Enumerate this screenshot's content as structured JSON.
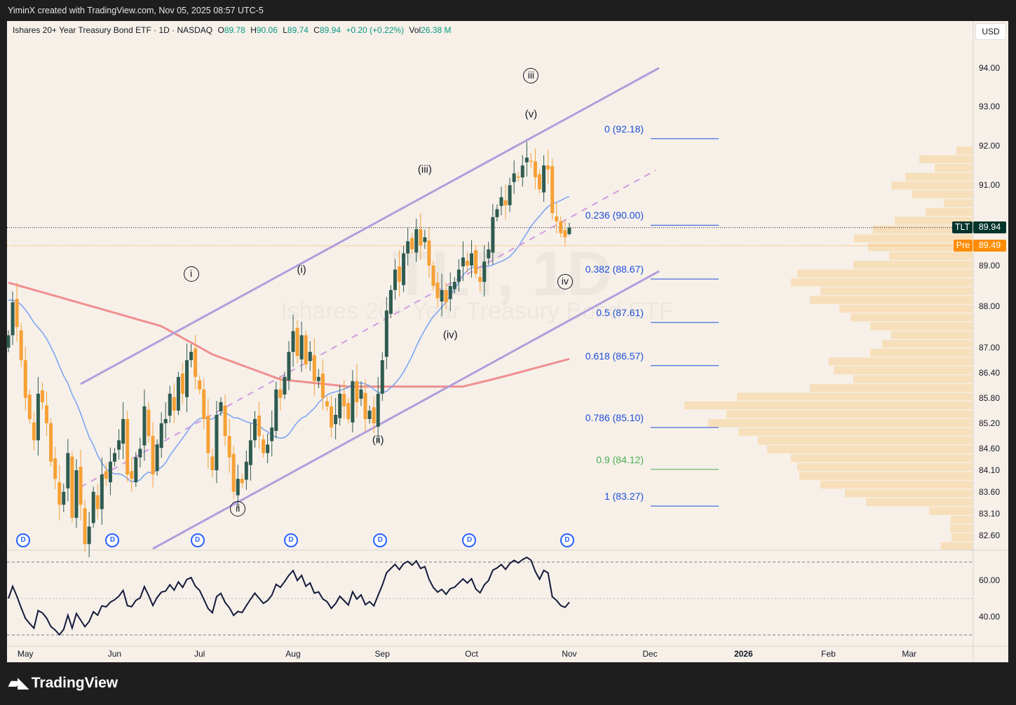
{
  "credit": "YiminX created with TradingView.com, Nov 05, 2025 08:57 UTC-5",
  "legend": {
    "title": "Ishares 20+ Year Treasury Bond ETF · 1D · NASDAQ",
    "o_label": "O",
    "o": "89.78",
    "h_label": "H",
    "h": "90.06",
    "l_label": "L",
    "l": "89.74",
    "c_label": "C",
    "c": "89.94",
    "change": "+0.20 (+0.22%)",
    "vol_label": "Vol",
    "vol": "26.38 M"
  },
  "currency": "USD",
  "watermark": {
    "symbol": "TLT, 1D",
    "name": "Ishares 20+ Year Treasury Bond ETF"
  },
  "price_tags": {
    "last": {
      "label": "TLT",
      "value": "89.94",
      "price": 89.94,
      "color": "#00332a"
    },
    "pre": {
      "label": "Pre",
      "value": "89.49",
      "price": 89.49,
      "color": "#ff8c00"
    }
  },
  "colors": {
    "up": "#2f5b50",
    "down": "#f7a035",
    "ma_fast": "#7ea6f2",
    "ma_slow": "#f08f8f",
    "channel": "#b39ddb",
    "fib": "#1d4ed8",
    "fib_green": "#4caf50",
    "profile": "#f7dfbb"
  },
  "price_axis": [
    "94.00",
    "93.00",
    "92.00",
    "91.00",
    "89.00",
    "88.00",
    "87.00",
    "86.40",
    "85.80",
    "85.20",
    "84.60",
    "84.10",
    "83.60",
    "83.10",
    "82.60"
  ],
  "rsi_axis": [
    "60.00",
    "40.00"
  ],
  "time_axis": [
    {
      "label": "May",
      "bar": 3
    },
    {
      "label": "Jun",
      "bar": 24
    },
    {
      "label": "Jul",
      "bar": 44
    },
    {
      "label": "Aug",
      "bar": 66
    },
    {
      "label": "Sep",
      "bar": 87
    },
    {
      "label": "Oct",
      "bar": 108
    },
    {
      "label": "Nov",
      "bar": 131
    },
    {
      "label": "Dec",
      "bar": 150
    },
    {
      "label": "2026",
      "bar": 172,
      "bold": true
    },
    {
      "label": "Feb",
      "bar": 192
    },
    {
      "label": "Mar",
      "bar": 211
    }
  ],
  "fib_levels": [
    {
      "label": "0 (92.18)",
      "price": 92.18
    },
    {
      "label": "0.236 (90.00)",
      "price": 90.0
    },
    {
      "label": "0.382 (88.67)",
      "price": 88.67
    },
    {
      "label": "0.5 (87.61)",
      "price": 87.61
    },
    {
      "label": "0.618 (86.57)",
      "price": 86.57
    },
    {
      "label": "0.786 (85.10)",
      "price": 85.1
    },
    {
      "label": "0.9 (84.12)",
      "price": 84.12,
      "green": true
    },
    {
      "label": "1 (83.27)",
      "price": 83.27
    }
  ],
  "waves": [
    {
      "label": "i",
      "circled": true,
      "bar": 43,
      "price": 88.8
    },
    {
      "label": "ii",
      "circled": true,
      "bar": 54,
      "price": 83.2
    },
    {
      "label": "iii",
      "circled": true,
      "bar": 123,
      "price": 93.8
    },
    {
      "label": "iv",
      "circled": true,
      "bar": 131,
      "price": 88.6
    },
    {
      "label": "(i)",
      "bar": 69,
      "price": 88.9
    },
    {
      "label": "(ii)",
      "bar": 87,
      "price": 84.8
    },
    {
      "label": "(iii)",
      "bar": 98,
      "price": 91.4
    },
    {
      "label": "(iv)",
      "bar": 104,
      "price": 87.3
    },
    {
      "label": "(v)",
      "bar": 123,
      "price": 92.8
    }
  ],
  "dividend_label": "D",
  "dividend_bars": [
    3,
    24,
    44,
    66,
    87,
    108,
    131
  ],
  "chart_data": {
    "type": "candlestick",
    "title": "Ishares 20+ Year Treasury Bond ETF · 1D · NASDAQ",
    "y_scale": "log",
    "ylim": [
      82.3,
      94.6
    ],
    "close": [
      87.3,
      88.1,
      87.5,
      86.7,
      85.8,
      85.3,
      84.8,
      85.9,
      85.7,
      85.2,
      84.3,
      83.9,
      83.3,
      83.6,
      84.5,
      83.0,
      84.1,
      83.3,
      82.4,
      82.8,
      83.6,
      83.2,
      84.0,
      83.9,
      84.3,
      84.5,
      84.8,
      85.3,
      84.0,
      83.9,
      84.4,
      84.6,
      85.6,
      84.9,
      84.0,
      84.7,
      85.2,
      85.3,
      85.9,
      85.5,
      86.3,
      85.9,
      86.7,
      86.9,
      86.3,
      86.0,
      85.3,
      84.5,
      84.1,
      85.4,
      85.7,
      84.9,
      84.4,
      83.6,
      83.9,
      83.8,
      84.3,
      84.8,
      85.3,
      84.9,
      84.5,
      84.7,
      85.1,
      86.0,
      85.8,
      86.3,
      86.9,
      87.4,
      86.8,
      87.3,
      86.6,
      86.9,
      86.2,
      86.3,
      85.8,
      85.6,
      85.1,
      85.4,
      85.9,
      85.6,
      85.3,
      86.2,
      85.7,
      86.0,
      85.3,
      85.5,
      85.2,
      85.9,
      86.7,
      87.9,
      88.4,
      88.9,
      88.6,
      89.3,
      89.6,
      89.4,
      89.9,
      89.5,
      89.7,
      89.0,
      88.5,
      88.2,
      88.4,
      88.1,
      88.5,
      88.6,
      88.9,
      89.2,
      89.0,
      89.3,
      88.8,
      88.6,
      89.1,
      89.4,
      90.2,
      90.4,
      90.7,
      90.5,
      91.0,
      91.3,
      91.2,
      91.5,
      91.7,
      91.6,
      91.2,
      90.9,
      91.5,
      91.4,
      90.3,
      90.1,
      89.8,
      89.7,
      89.94
    ],
    "last_bar": {
      "open": 89.78,
      "high": 90.06,
      "low": 89.74,
      "close": 89.94
    },
    "ma_fast_period": 20,
    "ma_slow": [
      {
        "bar": 0,
        "value": 88.58
      },
      {
        "bar": 36,
        "value": 87.52
      },
      {
        "bar": 48,
        "value": 86.84
      },
      {
        "bar": 64,
        "value": 86.24
      },
      {
        "bar": 80,
        "value": 86.07
      },
      {
        "bar": 97,
        "value": 86.07
      },
      {
        "bar": 107,
        "value": 86.07
      },
      {
        "bar": 117,
        "value": 86.32
      },
      {
        "bar": 132,
        "value": 86.73
      }
    ],
    "rsi": {
      "period": 14,
      "levels": [
        70,
        50,
        30
      ],
      "ylim": [
        25,
        75
      ]
    },
    "volume_profile": [
      23,
      76,
      54,
      96,
      116,
      86,
      41,
      67,
      111,
      142,
      169,
      149,
      119,
      170,
      250,
      259,
      217,
      232,
      190,
      174,
      146,
      116,
      129,
      146,
      205,
      198,
      170,
      232,
      336,
      411,
      351,
      377,
      334,
      306,
      293,
      259,
      250,
      247,
      217,
      182,
      152,
      62,
      31,
      32,
      30,
      45
    ]
  }
}
